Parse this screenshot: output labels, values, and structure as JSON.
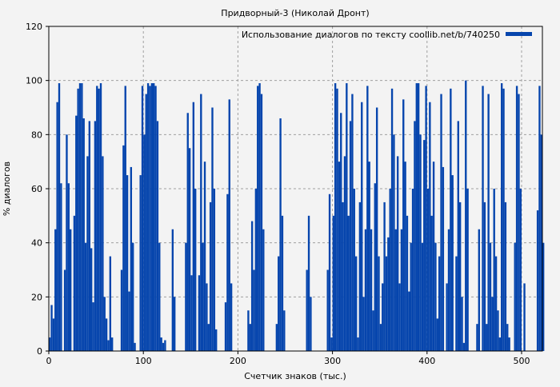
{
  "chart_data": {
    "type": "bar",
    "title": "Придворный-3 (Николай Дронт)",
    "xlabel": "Счетчик знаков (тыс.)",
    "ylabel": "% диалогов",
    "xlim": [
      0,
      522
    ],
    "ylim": [
      0,
      120
    ],
    "grid": true,
    "legend_position": "top-right",
    "series": [
      {
        "name": "Использование диалогов по тексту coollib.net/b/740250",
        "color": "#0645AD",
        "x_start": 0,
        "x_step": 2,
        "values": [
          5,
          17,
          12,
          45,
          92,
          99,
          62,
          0,
          30,
          80,
          62,
          45,
          0,
          50,
          87,
          97,
          99,
          99,
          86,
          40,
          72,
          85,
          38,
          18,
          85,
          98,
          97,
          99,
          72,
          20,
          12,
          4,
          35,
          5,
          0,
          0,
          0,
          0,
          30,
          76,
          98,
          65,
          22,
          68,
          40,
          3,
          0,
          0,
          65,
          98,
          80,
          95,
          99,
          98,
          99,
          99,
          98,
          85,
          40,
          5,
          3,
          4,
          0,
          0,
          0,
          45,
          20,
          0,
          0,
          0,
          0,
          0,
          40,
          88,
          75,
          28,
          92,
          60,
          0,
          28,
          95,
          40,
          70,
          25,
          10,
          55,
          90,
          60,
          8,
          0,
          0,
          0,
          0,
          18,
          58,
          93,
          25,
          0,
          0,
          0,
          0,
          0,
          0,
          0,
          0,
          15,
          10,
          48,
          30,
          60,
          98,
          99,
          95,
          45,
          0,
          0,
          0,
          0,
          0,
          0,
          10,
          35,
          86,
          50,
          15,
          0,
          0,
          0,
          0,
          0,
          0,
          0,
          0,
          0,
          0,
          0,
          30,
          50,
          20,
          0,
          0,
          0,
          0,
          0,
          0,
          0,
          0,
          30,
          58,
          5,
          50,
          99,
          97,
          70,
          88,
          55,
          72,
          99,
          50,
          85,
          95,
          60,
          35,
          5,
          55,
          92,
          20,
          45,
          98,
          70,
          45,
          15,
          62,
          90,
          35,
          10,
          25,
          55,
          35,
          42,
          60,
          97,
          80,
          45,
          72,
          25,
          45,
          93,
          70,
          50,
          22,
          40,
          60,
          85,
          99,
          99,
          80,
          40,
          78,
          98,
          60,
          92,
          50,
          70,
          40,
          12,
          35,
          95,
          68,
          0,
          25,
          45,
          97,
          65,
          0,
          35,
          85,
          55,
          20,
          3,
          100,
          60,
          0,
          0,
          0,
          0,
          10,
          45,
          0,
          98,
          55,
          10,
          95,
          40,
          20,
          60,
          35,
          15,
          5,
          99,
          97,
          55,
          10,
          5,
          0,
          0,
          40,
          98,
          95,
          60,
          0,
          25,
          0,
          0,
          0,
          0,
          0,
          0,
          52,
          98,
          80,
          40
        ]
      }
    ],
    "x_ticks": [
      "0",
      "100",
      "200",
      "300",
      "400",
      "500"
    ],
    "x_tick_values": [
      0,
      100,
      200,
      300,
      400,
      500
    ],
    "y_ticks": [
      "0",
      "20",
      "40",
      "60",
      "80",
      "100",
      "120"
    ],
    "y_tick_values": [
      0,
      20,
      40,
      60,
      80,
      100,
      120
    ]
  }
}
